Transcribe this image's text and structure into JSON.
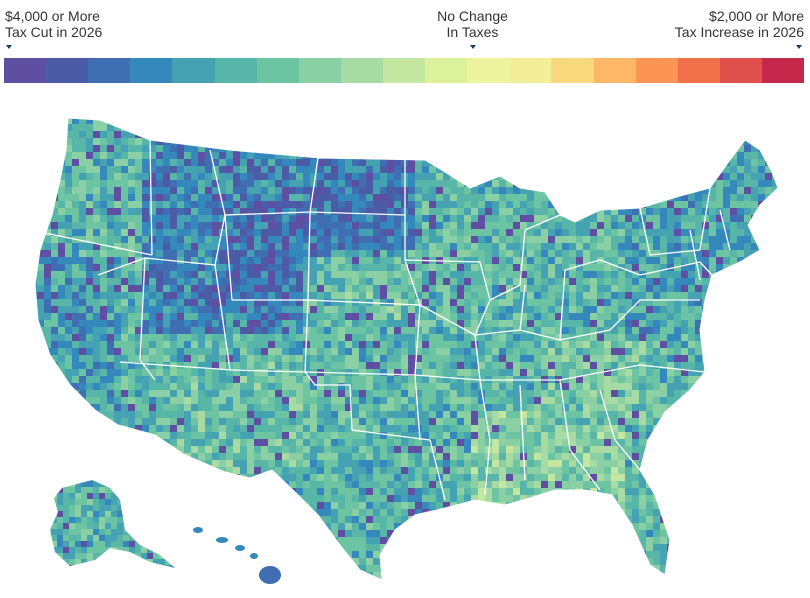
{
  "legend": {
    "left_line1": "$4,000 or More",
    "left_line2": "Tax Cut in 2026",
    "center_line1": "No Change",
    "center_line2": "In Taxes",
    "right_line1": "$2,000 or More",
    "right_line2": "Tax Increase in 2026",
    "colors": [
      "#5e4fa2",
      "#4b5ba6",
      "#3f6fb2",
      "#3488bc",
      "#44a2b3",
      "#58b6a8",
      "#6cc4a3",
      "#8ad0a4",
      "#a8dba4",
      "#c3e6a0",
      "#ddf09a",
      "#ecf4a0",
      "#f3ee98",
      "#f9d97d",
      "#fdb767",
      "#fb9455",
      "#f0704a",
      "#e0504c",
      "#c5284a"
    ]
  },
  "map": {
    "scheme": "county tax change choropleth"
  }
}
